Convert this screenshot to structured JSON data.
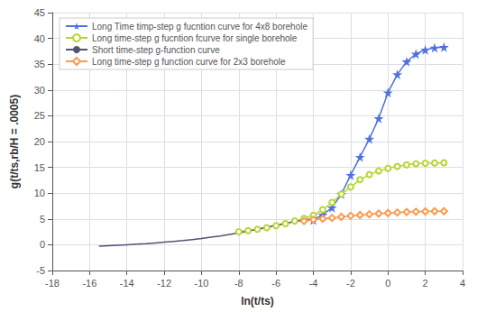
{
  "chart_data": {
    "type": "line",
    "xlabel": "ln(t/ts)",
    "ylabel": "g(t/ts,rb/H = .0005)",
    "xlim": [
      -18,
      4
    ],
    "ylim": [
      -5,
      45
    ],
    "xticks": [
      -18,
      -16,
      -14,
      -12,
      -10,
      -8,
      -6,
      -4,
      -2,
      0,
      2,
      4
    ],
    "yticks": [
      -5,
      0,
      5,
      10,
      15,
      20,
      25,
      30,
      35,
      40,
      45
    ],
    "grid": true,
    "legend": "upper left",
    "series": [
      {
        "name": "Long Time timp-step g fucntion curve for 4x8 borehole",
        "marker": "star",
        "x": [
          -4.0,
          -3.5,
          -3.0,
          -2.5,
          -2.0,
          -1.5,
          -1.0,
          -0.5,
          0.0,
          0.5,
          1.0,
          1.5,
          2.0,
          2.5,
          3.0
        ],
        "values": [
          4.8,
          5.8,
          7.2,
          9.8,
          13.5,
          17.0,
          20.5,
          24.5,
          29.5,
          33.0,
          35.5,
          37.0,
          37.8,
          38.2,
          38.3
        ]
      },
      {
        "name": "Long time-step g fucntion fcurve for single borehole",
        "marker": "circle",
        "x": [
          -8.0,
          -7.5,
          -7.0,
          -6.5,
          -6.0,
          -5.5,
          -5.0,
          -4.5,
          -4.0,
          -3.5,
          -3.0,
          -2.5,
          -2.0,
          -1.5,
          -1.0,
          -0.5,
          0.0,
          0.5,
          1.0,
          1.5,
          2.0,
          2.5,
          3.0
        ],
        "values": [
          2.5,
          2.75,
          3.0,
          3.3,
          3.7,
          4.1,
          4.6,
          5.1,
          5.7,
          6.8,
          8.2,
          9.8,
          11.2,
          12.6,
          13.6,
          14.3,
          14.8,
          15.2,
          15.5,
          15.7,
          15.8,
          15.85,
          15.9
        ]
      },
      {
        "name": "Short time-step g-function curve",
        "marker": "none",
        "x": [
          -15.5,
          -15.0,
          -14.5,
          -14.0,
          -13.5,
          -13.0,
          -12.5,
          -12.0,
          -11.5,
          -11.0,
          -10.5,
          -10.0,
          -9.5,
          -9.0,
          -8.5,
          -8.0,
          -7.5,
          -7.0,
          -6.5,
          -6.0,
          -5.5,
          -5.0,
          -4.5,
          -4.0
        ],
        "values": [
          -0.3,
          -0.2,
          -0.1,
          0.0,
          0.1,
          0.2,
          0.35,
          0.5,
          0.65,
          0.8,
          1.0,
          1.2,
          1.45,
          1.7,
          2.0,
          2.3,
          2.65,
          3.0,
          3.4,
          3.8,
          4.15,
          4.5,
          4.8,
          5.0
        ]
      },
      {
        "name": "Long time-step g function curve for 2x3 borehole",
        "marker": "diamond",
        "x": [
          -4.5,
          -4.0,
          -3.5,
          -3.0,
          -2.5,
          -2.0,
          -1.5,
          -1.0,
          -0.5,
          0.0,
          0.5,
          1.0,
          1.5,
          2.0,
          2.5,
          3.0
        ],
        "values": [
          4.6,
          4.85,
          5.05,
          5.2,
          5.4,
          5.6,
          5.75,
          5.9,
          6.05,
          6.15,
          6.25,
          6.35,
          6.4,
          6.45,
          6.5,
          6.5
        ]
      }
    ]
  }
}
